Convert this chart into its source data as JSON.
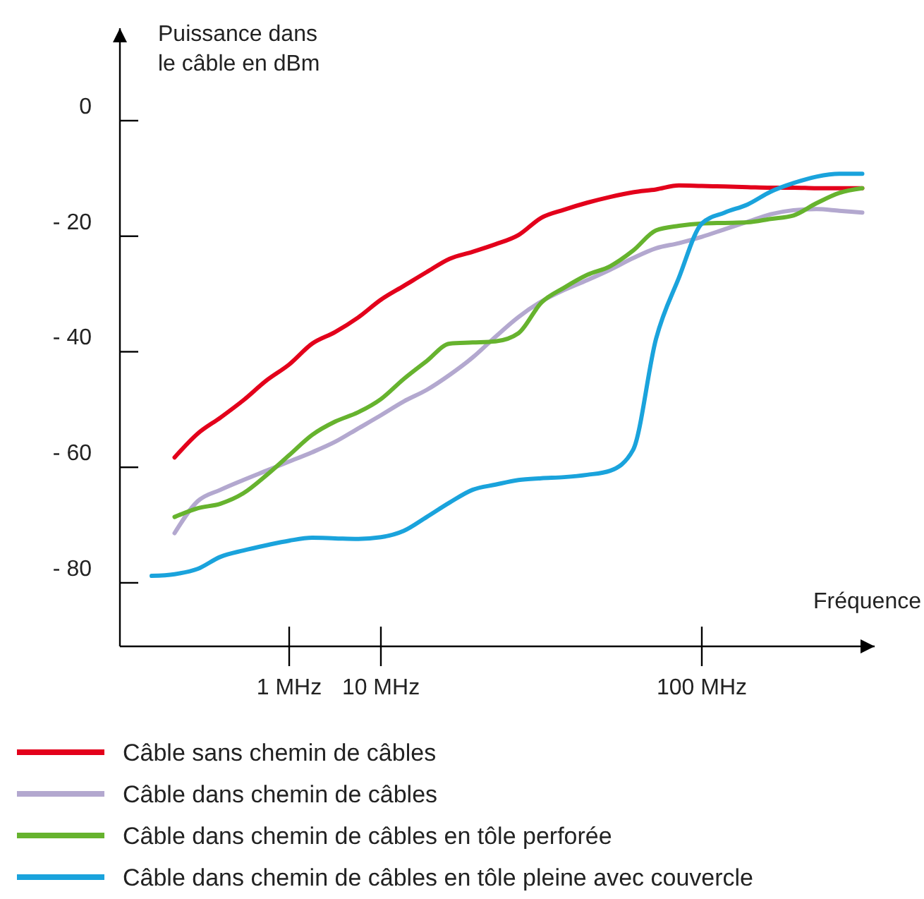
{
  "chart_data": {
    "type": "line",
    "ylabel": "Puissance dans le câble en dBm",
    "xlabel": "Fréquence",
    "ylim": [
      -91,
      16
    ],
    "categories": [
      null,
      null,
      null,
      null,
      null,
      null,
      "1 MHz",
      null,
      null,
      null,
      "10 MHz",
      null,
      null,
      null,
      null,
      null,
      null,
      null,
      null,
      null,
      null,
      null,
      null,
      null,
      "100 MHz",
      null,
      null,
      null,
      null,
      null,
      null,
      null
    ],
    "yticks": [
      0,
      {
        "value": -20,
        "label": "- 20"
      },
      {
        "value": -40,
        "label": "- 40"
      },
      {
        "value": -60,
        "label": "- 60"
      },
      {
        "value": -80,
        "label": "- 80"
      }
    ],
    "legend": "bottom",
    "line_style": "solid",
    "marker": "none",
    "series": [
      {
        "name": "Câble sans chemin de câbles",
        "color": "#e3001b",
        "values": [
          null,
          -58.3,
          -54.2,
          -51.4,
          -48.4,
          -45,
          -42.2,
          -38.6,
          -36.6,
          -34.1,
          -31,
          -28.6,
          -26.2,
          -23.9,
          -22.7,
          -21.4,
          -19.8,
          -16.8,
          -15.4,
          -14.2,
          -13.2,
          -12.4,
          -11.9,
          -11.2,
          -11.3,
          -11.4,
          -11.5,
          -11.6,
          -11.6,
          -11.7,
          -11.7,
          -11.7
        ]
      },
      {
        "name": "Câble dans chemin de câbles",
        "color": "#b3a8cf",
        "values": [
          null,
          -71.4,
          -65.9,
          -63.9,
          -62.2,
          -60.6,
          -59,
          -57.4,
          -55.6,
          -53.3,
          -51,
          -48.6,
          -46.6,
          -44,
          -41,
          -37.4,
          -34,
          -31.3,
          -29.3,
          -27.6,
          -25.8,
          -23.8,
          -22.1,
          -21.2,
          -20.1,
          -18.8,
          -17.5,
          -16.2,
          -15.5,
          -15.3,
          -15.6,
          -15.9
        ]
      },
      {
        "name": "Câble dans chemin de câbles en tôle perforée",
        "color": "#66b32e",
        "values": [
          null,
          -68.6,
          -67.1,
          -66.3,
          -64.5,
          -61.4,
          -57.9,
          -54.4,
          -52.1,
          -50.5,
          -48.2,
          -44.7,
          -41.6,
          -38.6,
          -38.4,
          -38.2,
          -36.8,
          -31.5,
          -28.9,
          -26.7,
          -25.2,
          -22.5,
          -19,
          -18.2,
          -17.8,
          -17.7,
          -17.6,
          -17,
          -16.4,
          -14.3,
          -12.5,
          -11.7
        ]
      },
      {
        "name": "Câble dans chemin de câbles en tôle pleine avec couvercle",
        "color": "#1aa3dc",
        "values": [
          -78.8,
          -78.5,
          -77.6,
          -75.5,
          -74.4,
          -73.5,
          -72.7,
          -72.2,
          -72.3,
          -72.4,
          -72.1,
          -71,
          -68.6,
          -66.1,
          -63.9,
          -63,
          -62.2,
          -61.9,
          -61.7,
          -61.3,
          -60.6,
          -57,
          -37.8,
          -27.2,
          -17.8,
          -15.9,
          -14.5,
          -12.3,
          -10.8,
          -9.7,
          -9.2,
          -9.2
        ]
      }
    ]
  }
}
